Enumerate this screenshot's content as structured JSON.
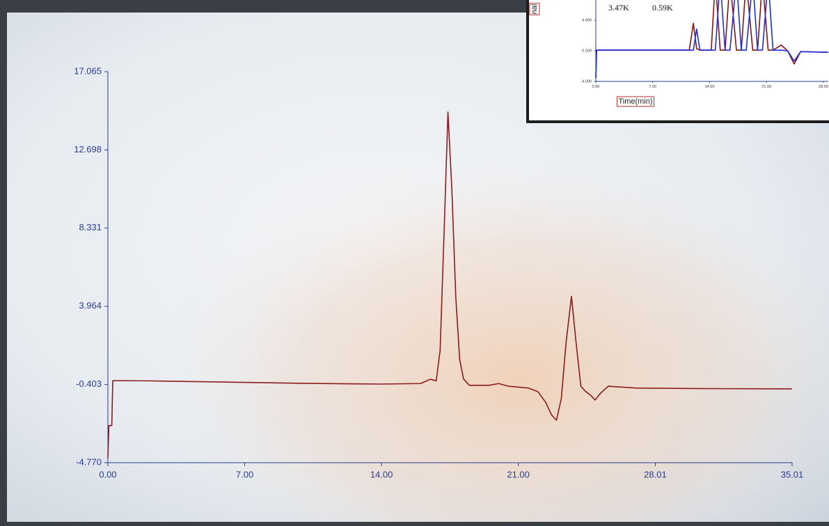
{
  "chart_data": [
    {
      "type": "line",
      "x": [
        0,
        0.05,
        0.2,
        0.25,
        2,
        5,
        10,
        14,
        16,
        16.5,
        16.8,
        17.0,
        17.2,
        17.4,
        17.6,
        17.8,
        18.0,
        18.2,
        18.5,
        19.5,
        20.0,
        20.5,
        21.5,
        22.0,
        22.4,
        22.7,
        22.95,
        23.2,
        23.45,
        23.72,
        23.95,
        24.2,
        24.45,
        24.7,
        24.93,
        25.2,
        25.6,
        27,
        30,
        35
      ],
      "series": [
        {
          "color": "#8b1c1c",
          "values": [
            -4.5,
            -2.7,
            -2.7,
            -0.19,
            -0.2,
            -0.25,
            -0.34,
            -0.38,
            -0.35,
            -0.11,
            -0.2,
            1.5,
            8.0,
            14.81,
            10.5,
            4.5,
            1.0,
            -0.1,
            -0.45,
            -0.45,
            -0.35,
            -0.5,
            -0.6,
            -0.8,
            -1.4,
            -2.1,
            -2.4,
            -1.2,
            2.0,
            4.52,
            2.0,
            -0.5,
            -0.8,
            -1.0,
            -1.27,
            -0.9,
            -0.5,
            -0.6,
            -0.63,
            -0.65
          ]
        }
      ],
      "xlim": [
        0,
        35.01
      ],
      "ylim": [
        -4.77,
        17.065
      ],
      "xticks": [
        {
          "value": 0,
          "label": "0.00"
        },
        {
          "value": 7,
          "label": "7.00"
        },
        {
          "value": 14,
          "label": "14.00"
        },
        {
          "value": 21,
          "label": "21.00"
        },
        28.01,
        35.01
      ],
      "yticks": [
        {
          "value": -4.77,
          "label": "-4.770"
        },
        -0.403,
        3.964,
        8.331,
        12.698,
        17.065
      ]
    },
    {
      "type": "line",
      "x": [
        0,
        0.1,
        0.3,
        11.5,
        12.0,
        12.4,
        12.8,
        14.2,
        14.7,
        15.3,
        15.9,
        16.5,
        17.3,
        17.9,
        18.5,
        19.3,
        19.9,
        20.5,
        21.2,
        21.8,
        22.8,
        23.6,
        24.4,
        25.2,
        28.6
      ],
      "series": [
        {
          "color": "#8b1010",
          "values": [
            -3.5,
            0.3,
            0.3,
            0.3,
            4.0,
            0.5,
            0.3,
            0.3,
            10,
            0.3,
            0.3,
            10,
            0.3,
            0.3,
            10,
            0.3,
            0.3,
            10,
            0.3,
            0.3,
            1.0,
            0.2,
            -1.6,
            0.1,
            0.0
          ]
        },
        {
          "color": "#1a2ee0",
          "values": [
            -3.5,
            0.3,
            0.3,
            0.3,
            0.3,
            3.2,
            0.3,
            0.3,
            0.3,
            10,
            0.3,
            0.3,
            10,
            0.3,
            0.3,
            10,
            0.3,
            0.3,
            10,
            0.3,
            0.3,
            0.2,
            -1.2,
            0.1,
            0.0
          ]
        }
      ],
      "xlim": [
        0,
        28.6
      ],
      "ylim": [
        -4,
        7.2
      ],
      "xticks": [
        {
          "value": 0,
          "label": "0.00"
        },
        {
          "value": 7,
          "label": "7.00"
        },
        {
          "value": 14,
          "label": "14.00"
        },
        {
          "value": 21,
          "label": "21.00"
        },
        {
          "value": 28,
          "label": "28.00"
        }
      ],
      "yticks": [
        {
          "value": -4,
          "label": "-4.000"
        },
        {
          "value": 0.2,
          "label": "0.200"
        },
        {
          "value": 4.4,
          "label": "4.400"
        }
      ],
      "x_label": "Time(min)",
      "y_label": "nal",
      "annotations": [
        "3.47K",
        "0.59K"
      ]
    }
  ]
}
